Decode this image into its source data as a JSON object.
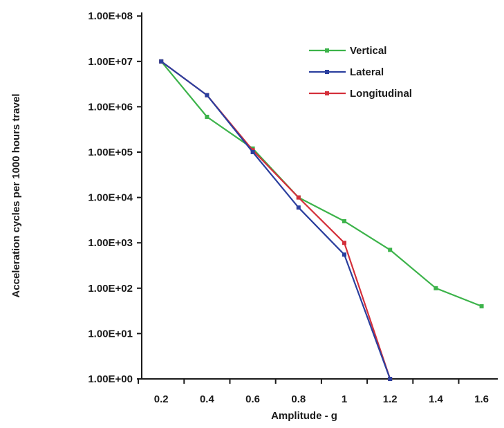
{
  "chart_data": {
    "type": "line",
    "xlabel": "Amplitude - g",
    "ylabel": "Acceleration cycles per 1000 hours travel",
    "y_scale": "log",
    "xlim": [
      0.0,
      1.6
    ],
    "ylim": [
      1,
      100000000
    ],
    "x_ticks": [
      0.2,
      0.4,
      0.6,
      0.8,
      1.0,
      1.2,
      1.4,
      1.6
    ],
    "x_tick_labels": [
      "0.2",
      "0.4",
      "0.6",
      "0.8",
      "1",
      "1.2",
      "1.4",
      "1.6"
    ],
    "y_ticks": [
      1,
      10,
      100,
      1000,
      10000,
      100000,
      1000000,
      10000000,
      100000000
    ],
    "y_tick_labels": [
      "1.00E+00",
      "1.00E+01",
      "1.00E+02",
      "1.00E+03",
      "1.00E+04",
      "1.00E+05",
      "1.00E+06",
      "1.00E+07",
      "1.00E+08"
    ],
    "legend_position": "top-right",
    "grid": false,
    "series": [
      {
        "name": "Vertical",
        "color": "#3cb34a",
        "x": [
          0.2,
          0.4,
          0.6,
          0.8,
          1.0,
          1.2,
          1.4,
          1.6
        ],
        "y": [
          10000000,
          600000,
          120000,
          10000,
          3000,
          700,
          100,
          40
        ]
      },
      {
        "name": "Lateral",
        "color": "#2b3f9e",
        "x": [
          0.2,
          0.4,
          0.6,
          0.8,
          1.0,
          1.2
        ],
        "y": [
          10000000,
          1800000,
          100000,
          6000,
          550,
          1
        ]
      },
      {
        "name": "Longitudinal",
        "color": "#d42f3a",
        "x": [
          0.2,
          0.4,
          0.6,
          0.8,
          1.0,
          1.2
        ],
        "y": [
          10000000,
          1800000,
          110000,
          10000,
          1000,
          1
        ]
      }
    ]
  }
}
